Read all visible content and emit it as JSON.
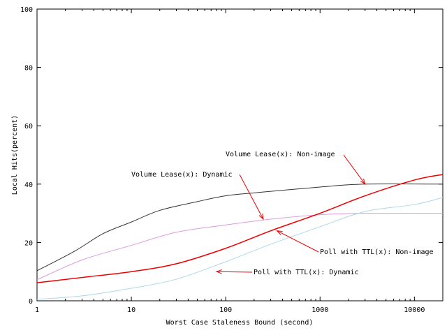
{
  "chart_data": {
    "type": "line",
    "title": "",
    "xlabel": "Worst Case Staleness Bound (second)",
    "ylabel": "Local Hits(percent)",
    "xscale": "log",
    "xlim": [
      1,
      20000
    ],
    "ylim": [
      0,
      100
    ],
    "grid": false,
    "legend": "none (curves labeled by arrow annotations)",
    "xticks": [
      "1",
      "10",
      "100",
      "1000",
      "10000"
    ],
    "yticks": [
      "0",
      "20",
      "40",
      "60",
      "80",
      "100"
    ],
    "series": [
      {
        "name": "Volume Lease(x): Non-image",
        "color": "#333333",
        "x": [
          1,
          2.5,
          5,
          10,
          20,
          50,
          100,
          200,
          1000,
          3000,
          20000
        ],
        "y": [
          10.3,
          17,
          23,
          27,
          31,
          34,
          36,
          37,
          39,
          40,
          40
        ]
      },
      {
        "name": "Volume Lease(x): Dynamic",
        "color": "#dd99dd",
        "x": [
          1,
          3,
          10,
          30,
          100,
          300,
          1000,
          3000,
          20000
        ],
        "y": [
          7.2,
          14,
          19,
          23.5,
          26,
          28,
          29.5,
          30,
          30
        ]
      },
      {
        "name": "Poll with TTL(x): Non-image",
        "color": "#ee0000",
        "x": [
          1,
          3,
          10,
          30,
          100,
          300,
          1000,
          3000,
          10000,
          20000
        ],
        "y": [
          6.2,
          8,
          10,
          12.7,
          18,
          24,
          30,
          36,
          41.4,
          43.3
        ]
      },
      {
        "name": "Poll with TTL(x): Dynamic",
        "color": "#add8e6",
        "x": [
          1,
          3,
          10,
          30,
          100,
          300,
          1000,
          3000,
          10000,
          20000
        ],
        "y": [
          0.5,
          1.7,
          4.3,
          7.4,
          13.4,
          19.4,
          25.4,
          30.6,
          33,
          35.4
        ]
      }
    ],
    "annotations": [
      {
        "text": "Volume Lease(x): Non-image",
        "arrow_to_x": 3000,
        "arrow_to_y": 40
      },
      {
        "text": "Volume Lease(x): Dynamic",
        "arrow_to_x": 250,
        "arrow_to_y": 28
      },
      {
        "text": "Poll with TTL(x): Non-image",
        "arrow_to_x": 350,
        "arrow_to_y": 24
      },
      {
        "text": "Poll with TTL(x): Dynamic",
        "arrow_to_x": 80,
        "arrow_to_y": 10
      }
    ]
  }
}
